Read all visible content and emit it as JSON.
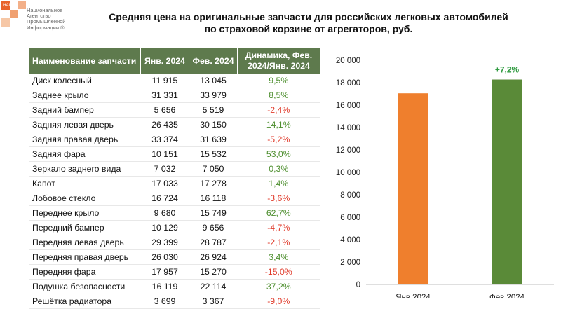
{
  "header": {
    "logo_tag": "НАПИ",
    "logo_lines": [
      "Национальное",
      "Агентство",
      "Промышленной",
      "Информации ®"
    ],
    "title_line1": "Средняя цена на оригинальные запчасти для российских легковых автомобилей",
    "title_line2": "по страховой корзине от агрегаторов, руб."
  },
  "table": {
    "columns": [
      "Наименование запчасти",
      "Янв. 2024",
      "Фев. 2024",
      "Динамика, Фев. 2024/Янв. 2024"
    ],
    "rows": [
      {
        "name": "Диск колесный",
        "jan": "11 915",
        "feb": "13 045",
        "change": "9,5%",
        "dir": "pos"
      },
      {
        "name": "Заднее крыло",
        "jan": "31 331",
        "feb": "33 979",
        "change": "8,5%",
        "dir": "pos"
      },
      {
        "name": "Задний бампер",
        "jan": "5 656",
        "feb": "5 519",
        "change": "-2,4%",
        "dir": "neg"
      },
      {
        "name": "Задняя левая дверь",
        "jan": "26 435",
        "feb": "30 150",
        "change": "14,1%",
        "dir": "pos"
      },
      {
        "name": "Задняя правая дверь",
        "jan": "33 374",
        "feb": "31 639",
        "change": "-5,2%",
        "dir": "neg"
      },
      {
        "name": "Задняя фара",
        "jan": "10 151",
        "feb": "15 532",
        "change": "53,0%",
        "dir": "pos"
      },
      {
        "name": "Зеркало заднего вида",
        "jan": "7 032",
        "feb": "7 050",
        "change": "0,3%",
        "dir": "pos"
      },
      {
        "name": "Капот",
        "jan": "17 033",
        "feb": "17 278",
        "change": "1,4%",
        "dir": "pos"
      },
      {
        "name": "Лобовое стекло",
        "jan": "16 724",
        "feb": "16 118",
        "change": "-3,6%",
        "dir": "neg"
      },
      {
        "name": "Переднее крыло",
        "jan": "9 680",
        "feb": "15 749",
        "change": "62,7%",
        "dir": "pos"
      },
      {
        "name": "Передний бампер",
        "jan": "10 129",
        "feb": "9 656",
        "change": "-4,7%",
        "dir": "neg"
      },
      {
        "name": "Передняя левая дверь",
        "jan": "29 399",
        "feb": "28 787",
        "change": "-2,1%",
        "dir": "neg"
      },
      {
        "name": "Передняя правая дверь",
        "jan": "26 030",
        "feb": "26 924",
        "change": "3,4%",
        "dir": "pos"
      },
      {
        "name": "Передняя фара",
        "jan": "17 957",
        "feb": "15 270",
        "change": "-15,0%",
        "dir": "neg"
      },
      {
        "name": "Подушка безопасности",
        "jan": "16 119",
        "feb": "22 114",
        "change": "37,2%",
        "dir": "pos"
      },
      {
        "name": "Решётка радиатора",
        "jan": "3 699",
        "feb": "3 367",
        "change": "-9,0%",
        "dir": "neg"
      }
    ]
  },
  "colors": {
    "header_green": "#5e7a4d",
    "bar_jan": "#ef7f2d",
    "bar_feb": "#5a8a38",
    "positive": "#4e8f2f",
    "negative": "#e03a2a"
  },
  "chart_data": {
    "type": "bar",
    "title": "",
    "categories": [
      "Янв.2024",
      "Фев.2024"
    ],
    "values": [
      17050,
      18280
    ],
    "bar_colors": [
      "#ef7f2d",
      "#5a8a38"
    ],
    "ylim": [
      0,
      20000
    ],
    "yticks": [
      0,
      2000,
      4000,
      6000,
      8000,
      10000,
      12000,
      14000,
      16000,
      18000,
      20000
    ],
    "ytick_labels": [
      "0",
      "2 000",
      "4 000",
      "6 000",
      "8 000",
      "10 000",
      "12 000",
      "14 000",
      "16 000",
      "18 000",
      "20 000"
    ],
    "annotations": [
      {
        "category": "Фев.2024",
        "text": "+7,2%"
      }
    ],
    "annotation_color": "#2e9a3f",
    "xlabel": "",
    "ylabel": ""
  }
}
